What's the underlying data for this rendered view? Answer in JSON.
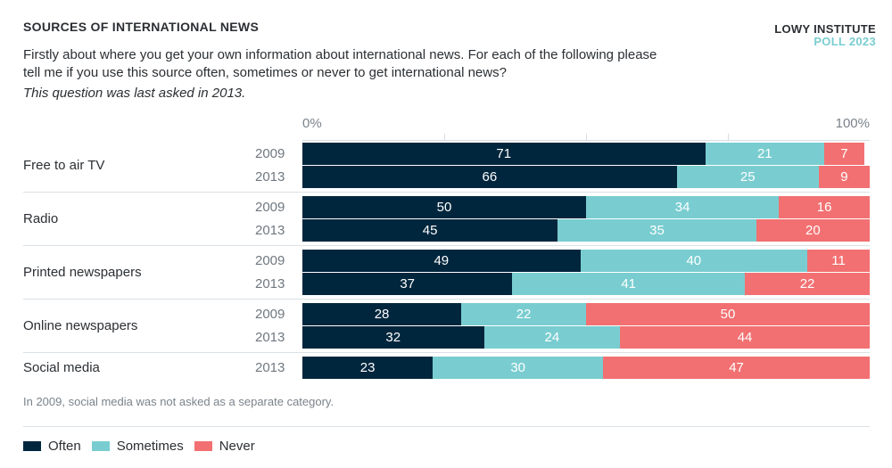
{
  "header": {
    "title": "SOURCES OF INTERNATIONAL NEWS",
    "brand_line1": "LOWY INSTITUTE",
    "brand_line2": "POLL 2023",
    "question": "Firstly about where you get your own information about international news. For each of the following please tell me if you use this source often, sometimes or never to get international news?",
    "note": "This question was last asked in 2013."
  },
  "chart_data": {
    "type": "bar",
    "orientation": "horizontal",
    "stacked": true,
    "axis": {
      "min_label": "0%",
      "max_label": "100%",
      "range": [
        0,
        100
      ],
      "gridlines": [
        25,
        50,
        75
      ]
    },
    "series_names": [
      "Often",
      "Sometimes",
      "Never"
    ],
    "colors": {
      "Often": "#00263d",
      "Sometimes": "#79cdd0",
      "Never": "#f27071"
    },
    "groups": [
      {
        "category": "Free to air TV",
        "rows": [
          {
            "year": "2009",
            "values": [
              71,
              21,
              7
            ]
          },
          {
            "year": "2013",
            "values": [
              66,
              25,
              9
            ]
          }
        ]
      },
      {
        "category": "Radio",
        "rows": [
          {
            "year": "2009",
            "values": [
              50,
              34,
              16
            ]
          },
          {
            "year": "2013",
            "values": [
              45,
              35,
              20
            ]
          }
        ]
      },
      {
        "category": "Printed newspapers",
        "rows": [
          {
            "year": "2009",
            "values": [
              49,
              40,
              11
            ]
          },
          {
            "year": "2013",
            "values": [
              37,
              41,
              22
            ]
          }
        ]
      },
      {
        "category": "Online newspapers",
        "rows": [
          {
            "year": "2009",
            "values": [
              28,
              22,
              50
            ]
          },
          {
            "year": "2013",
            "values": [
              32,
              24,
              44
            ]
          }
        ]
      },
      {
        "category": "Social media",
        "rows": [
          {
            "year": "2013",
            "values": [
              23,
              30,
              47
            ]
          }
        ]
      }
    ],
    "footnote": "In 2009, social media was not asked as a separate category.",
    "legend": [
      "Often",
      "Sometimes",
      "Never"
    ]
  }
}
